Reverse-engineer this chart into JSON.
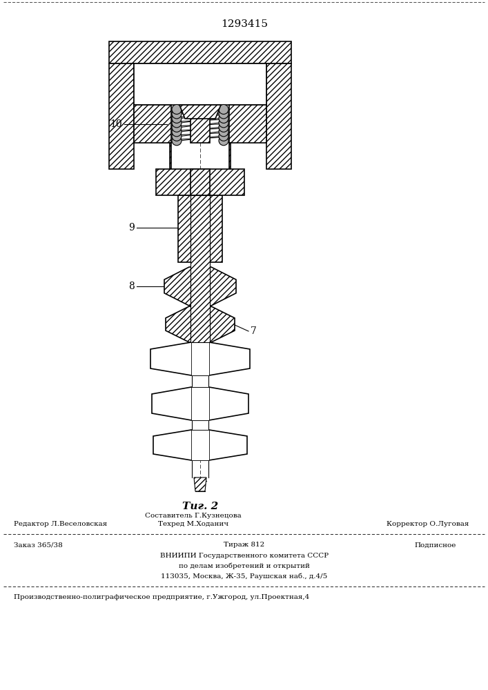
{
  "patent_number": "1293415",
  "fig_label": "Τиг. 2",
  "label_10": "10",
  "label_9": "9",
  "label_8": "8",
  "label_7": "7",
  "footer_compositor": "Составитель Г.Кузнецова",
  "footer_editor": "Редактор Л.Веселовская",
  "footer_tehred": "Техред М.Ходанич",
  "footer_correktor": "Корректор О.Луговая",
  "footer_zakaz": "Заказ 365/38",
  "footer_tirazh": "Тираж 812",
  "footer_podpisnoe": "Подписное",
  "footer_vniipи": "ВНИИПИ Государственного комитета СССР",
  "footer_podel": "по делам изобретений и открытий",
  "footer_addr": "113035, Москва, Ж-35, Раушская наб., д.4/5",
  "footer_factory": "Производственно-полиграфическое предприятие, г.Ужгород, ул.Проектная,4",
  "bg_color": "#ffffff",
  "line_color": "#000000"
}
